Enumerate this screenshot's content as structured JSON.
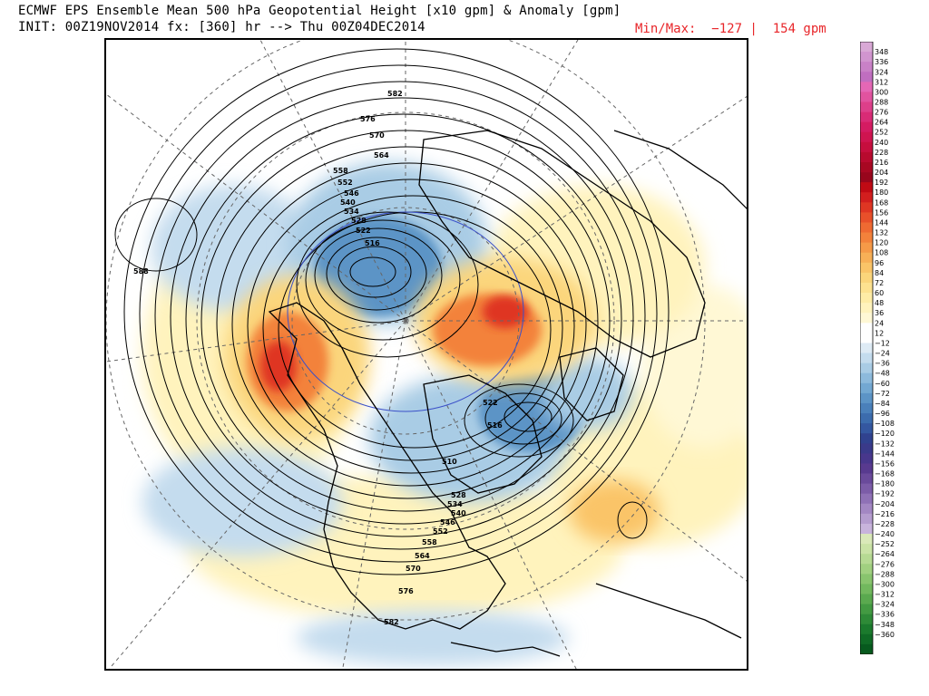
{
  "header": {
    "title": "ECMWF EPS Ensemble Mean 500 hPa Geopotential Height [x10 gpm] & Anomaly [gpm]",
    "subtitle": "INIT: 00Z19NOV2014 fx: [360] hr --> Thu 00Z04DEC2014",
    "minmax": "Min/Max:  −127 |  154 gpm"
  },
  "colorbar": {
    "levels": [
      "348",
      "336",
      "324",
      "312",
      "300",
      "288",
      "276",
      "264",
      "252",
      "240",
      "228",
      "216",
      "204",
      "192",
      "180",
      "168",
      "156",
      "144",
      "132",
      "120",
      "108",
      "96",
      "84",
      "72",
      "60",
      "48",
      "36",
      "24",
      "12",
      "−12",
      "−24",
      "−36",
      "−48",
      "−60",
      "−72",
      "−84",
      "−96",
      "−108",
      "−120",
      "−132",
      "−144",
      "−156",
      "−168",
      "−180",
      "−192",
      "−204",
      "−216",
      "−228",
      "−240",
      "−252",
      "−264",
      "−276",
      "−288",
      "−300",
      "−312",
      "−324",
      "−336",
      "−348",
      "−360"
    ],
    "colors": [
      "#d9a9d6",
      "#d195cf",
      "#c981c7",
      "#c06ec0",
      "#e467b5",
      "#e1539f",
      "#dd3f8a",
      "#d92b76",
      "#d41b62",
      "#cf1450",
      "#c60e3e",
      "#b80a2e",
      "#a80822",
      "#98061c",
      "#c00a14",
      "#d21e1e",
      "#df3623",
      "#e8502a",
      "#ef6a32",
      "#f3823b",
      "#f69a48",
      "#f8b057",
      "#fac468",
      "#fbd57b",
      "#fde290",
      "#feeca6",
      "#fff3bd",
      "#fff8d5",
      "#ffffff",
      "#ffffff",
      "#deebf5",
      "#c4dcee",
      "#a9cce5",
      "#8dbadc",
      "#73a8d2",
      "#5c94c6",
      "#4a80ba",
      "#3c6cad",
      "#3457a0",
      "#30428f",
      "#3a3a8a",
      "#48378c",
      "#583a8f",
      "#6a4a9b",
      "#7c5ca8",
      "#8f71b6",
      "#a387c3",
      "#b59dcf",
      "#c8b4dc",
      "#dae9b9",
      "#cae3a6",
      "#b6da93",
      "#a1d080",
      "#89c46e",
      "#72b85e",
      "#5aa94f",
      "#439a42",
      "#2e8a37",
      "#1b7a2d",
      "#0f6a25",
      "#075a1e"
    ]
  },
  "map": {
    "contour_labels": [
      "582",
      "576",
      "570",
      "564",
      "558",
      "552",
      "546",
      "540",
      "534",
      "528",
      "522",
      "516",
      "588",
      "522",
      "516",
      "510",
      "528",
      "534",
      "540",
      "546",
      "552",
      "558",
      "564",
      "570",
      "576",
      "582"
    ],
    "anomaly_centers": [
      {
        "name": "alaska-ridge",
        "sign": "positive"
      },
      {
        "name": "siberia-ridge",
        "sign": "positive"
      },
      {
        "name": "polar-trough",
        "sign": "negative"
      },
      {
        "name": "canada-trough",
        "sign": "negative"
      }
    ]
  }
}
